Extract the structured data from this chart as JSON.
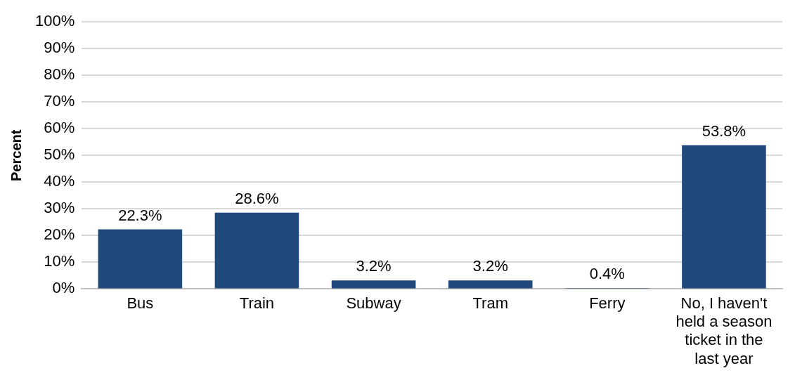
{
  "chart_data": {
    "type": "bar",
    "ylabel": "Percent",
    "categories": [
      "Bus",
      "Train",
      "Subway",
      "Tram",
      "Ferry",
      "No, I haven't held a season ticket in the last year"
    ],
    "values": [
      22.3,
      28.6,
      3.2,
      3.2,
      0.4,
      53.8
    ],
    "value_labels": [
      "22.3%",
      "28.6%",
      "3.2%",
      "3.2%",
      "0.4%",
      "53.8%"
    ],
    "color": "#21497c",
    "ylim": [
      0,
      100
    ],
    "yticks": [
      {
        "value": 0,
        "label": "0%"
      },
      {
        "value": 10,
        "label": "10%"
      },
      {
        "value": 20,
        "label": "20%"
      },
      {
        "value": 30,
        "label": "30%"
      },
      {
        "value": 40,
        "label": "40%"
      },
      {
        "value": 50,
        "label": "50%"
      },
      {
        "value": 60,
        "label": "60%"
      },
      {
        "value": 70,
        "label": "70%"
      },
      {
        "value": 80,
        "label": "80%"
      },
      {
        "value": 90,
        "label": "90%"
      },
      {
        "value": 100,
        "label": "100%"
      }
    ],
    "grid": "y",
    "legend": false
  }
}
